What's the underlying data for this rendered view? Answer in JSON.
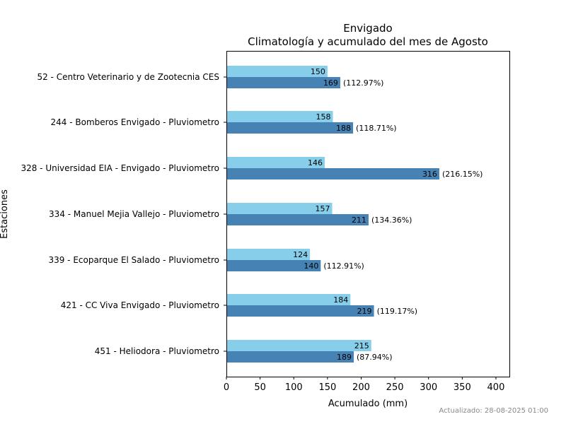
{
  "chart_data": {
    "type": "bar",
    "orientation": "horizontal",
    "title": "Envigado",
    "subtitle": "Climatología y acumulado del mes de Agosto",
    "xlabel": "Acumulado (mm)",
    "ylabel": "Estaciones",
    "xlim": [
      0,
      420
    ],
    "xticks": [
      0,
      50,
      100,
      150,
      200,
      250,
      300,
      350,
      400
    ],
    "grid": false,
    "categories": [
      "52 - Centro Veterinario y de Zootecnia CES",
      "244 - Bomberos Envigado - Pluviometro",
      "328 - Universidad EIA - Envigado - Pluviometro",
      "334 - Manuel Mejia Vallejo - Pluviometro",
      "339 - Ecoparque El Salado - Pluviometro",
      "421 - CC Viva Envigado - Pluviometro",
      "451 - Heliodora - Pluviometro"
    ],
    "series": [
      {
        "values": [
          150,
          158,
          146,
          157,
          124,
          184,
          215
        ],
        "color": "#87CEEB"
      },
      {
        "values": [
          169,
          188,
          316,
          211,
          140,
          219,
          189
        ],
        "color": "#4682B4",
        "percent_labels": [
          "(112.97%)",
          "(118.71%)",
          "(216.15%)",
          "(134.36%)",
          "(112.91%)",
          "(119.17%)",
          "(87.94%)"
        ]
      }
    ]
  },
  "footer": "Actualizado: 28-08-2025 01:00"
}
